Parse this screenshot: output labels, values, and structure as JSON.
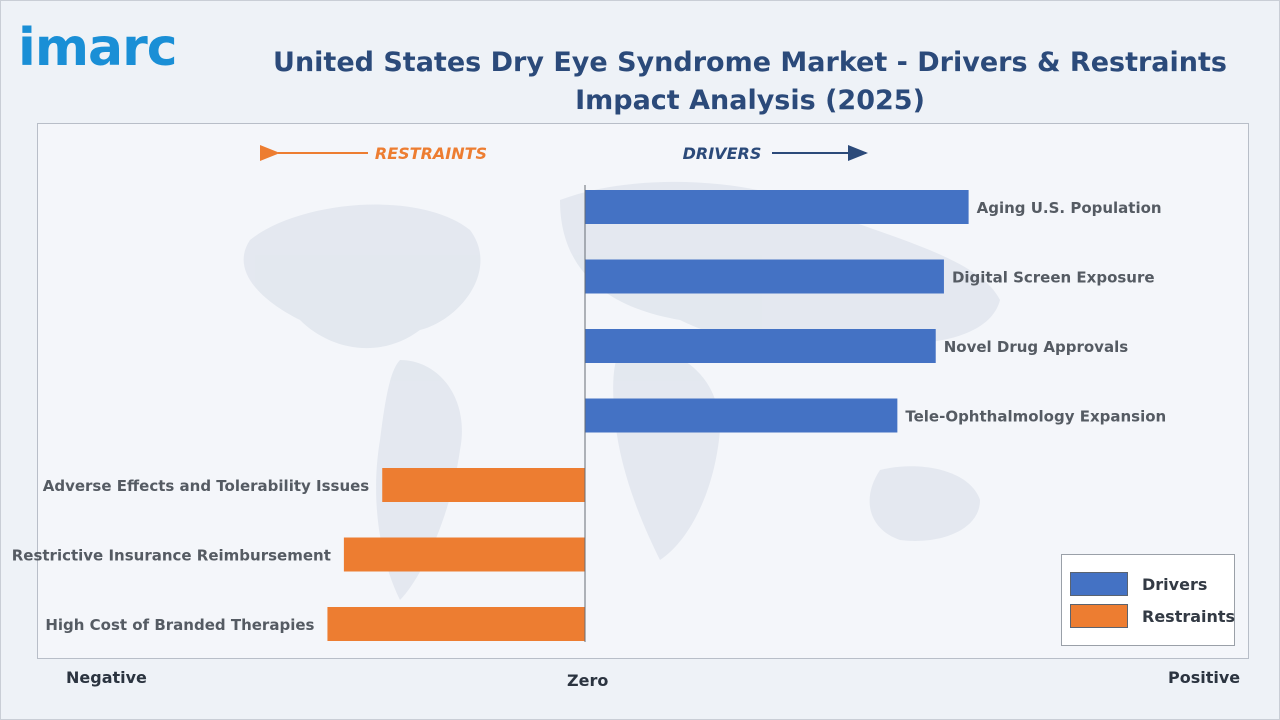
{
  "brand": {
    "logo_text": "imarc"
  },
  "title": "United States Dry Eye Syndrome Market - Drivers & Restraints Impact Analysis (2025)",
  "direction_labels": {
    "restraints": "RESTRAINTS",
    "drivers": "DRIVERS"
  },
  "axis_labels": {
    "negative": "Negative",
    "zero": "Zero",
    "positive": "Positive"
  },
  "colors": {
    "drivers": "#4472c4",
    "restraints": "#ed7d31",
    "restraints_text": "#ed7d31",
    "drivers_text": "#2b4a7a",
    "logo": "#1a8fd6"
  },
  "legend": {
    "items": [
      {
        "label": "Drivers",
        "color": "#4472c4"
      },
      {
        "label": "Restraints",
        "color": "#ed7d31"
      }
    ]
  },
  "chart_data": {
    "type": "bar",
    "orientation": "horizontal",
    "title": "United States Dry Eye Syndrome Market - Drivers & Restraints Impact Analysis (2025)",
    "xlim": [
      -1,
      1
    ],
    "categories": [
      "Aging U.S. Population",
      "Digital Screen Exposure",
      "Novel Drug Approvals",
      "Tele-Ophthalmology Expansion",
      "Adverse Effects and Tolerability Issues",
      "Restrictive Insurance Reimbursement",
      "High Cost of Branded Therapies"
    ],
    "series": [
      {
        "name": "Drivers",
        "values": [
          0.7,
          0.655,
          0.64,
          0.57,
          0,
          0,
          0
        ]
      },
      {
        "name": "Restraints",
        "values": [
          0,
          0,
          0,
          0,
          -0.37,
          -0.44,
          -0.47
        ]
      }
    ],
    "legend_position": "bottom-right",
    "grid": false
  }
}
